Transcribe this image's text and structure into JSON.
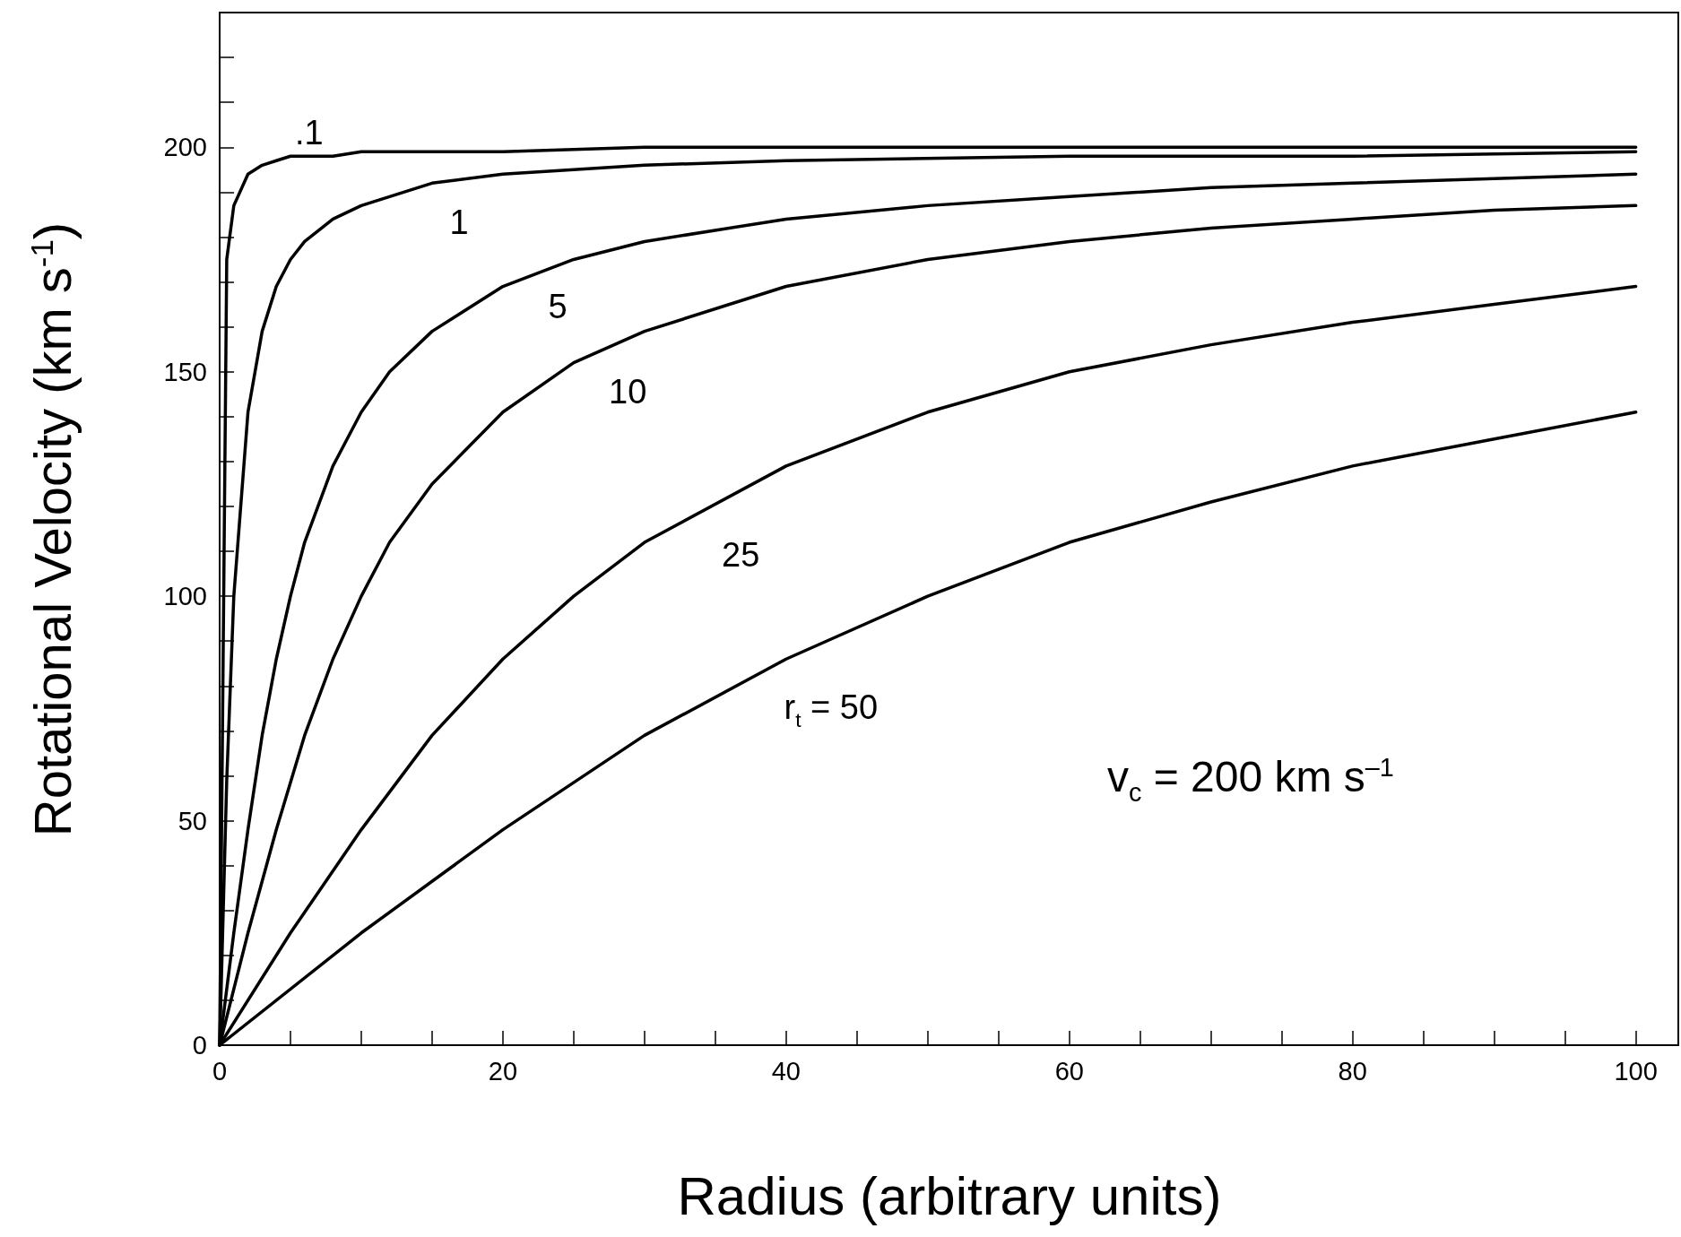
{
  "chart_data": {
    "type": "line",
    "xlabel": "Radius (arbitrary units)",
    "ylabel": "Rotational Velocity (km s$^{-1}$)",
    "xlim": [
      0,
      103
    ],
    "xticks": [
      0,
      20,
      40,
      60,
      80,
      100
    ],
    "ylim": [
      0,
      230
    ],
    "yticks": [
      0,
      50,
      100,
      150,
      200
    ],
    "grid": false,
    "marker": "none",
    "line_style": "solid",
    "series": [
      {
        "color": "#000000",
        "x": [
          0,
          0.5,
          1,
          2,
          3,
          4,
          5,
          6,
          8,
          10,
          15,
          20,
          30,
          50,
          100
        ],
        "values": [
          0,
          175,
          187,
          194,
          196,
          197,
          198,
          198,
          198,
          199,
          199,
          199,
          200,
          200,
          200
        ]
      },
      {
        "color": "#000000",
        "x": [
          0,
          0.5,
          1,
          2,
          3,
          4,
          5,
          6,
          8,
          10,
          15,
          20,
          30,
          40,
          60,
          80,
          100
        ],
        "values": [
          0,
          59,
          100,
          141,
          159,
          169,
          175,
          179,
          184,
          187,
          192,
          194,
          196,
          197,
          198,
          198,
          199
        ]
      },
      {
        "color": "#000000",
        "x": [
          0,
          1,
          2,
          3,
          4,
          5,
          6,
          8,
          10,
          12,
          15,
          20,
          25,
          30,
          40,
          50,
          60,
          70,
          80,
          90,
          100
        ],
        "values": [
          0,
          25,
          48,
          69,
          86,
          100,
          112,
          129,
          141,
          150,
          159,
          169,
          175,
          179,
          184,
          187,
          189,
          191,
          192,
          193,
          194
        ]
      },
      {
        "color": "#000000",
        "x": [
          0,
          2,
          4,
          6,
          8,
          10,
          12,
          15,
          20,
          25,
          30,
          40,
          50,
          60,
          70,
          80,
          90,
          100
        ],
        "values": [
          0,
          25,
          48,
          69,
          86,
          100,
          112,
          125,
          141,
          152,
          159,
          169,
          175,
          179,
          182,
          184,
          186,
          187
        ]
      },
      {
        "color": "#000000",
        "x": [
          0,
          5,
          10,
          15,
          20,
          25,
          30,
          40,
          50,
          60,
          70,
          80,
          90,
          100
        ],
        "values": [
          0,
          25,
          48,
          69,
          86,
          100,
          112,
          129,
          141,
          150,
          156,
          161,
          165,
          169
        ]
      },
      {
        "color": "#000000",
        "x": [
          0,
          10,
          20,
          30,
          40,
          50,
          60,
          70,
          80,
          90,
          100
        ],
        "values": [
          0,
          25,
          48,
          69,
          86,
          100,
          112,
          121,
          129,
          135,
          141
        ]
      }
    ],
    "annotations": [
      ".1",
      "1",
      "5",
      "10",
      "25",
      "r$_{t}$ = 50",
      "v$_{c}$ = 200 km s$^{–1}$"
    ]
  }
}
